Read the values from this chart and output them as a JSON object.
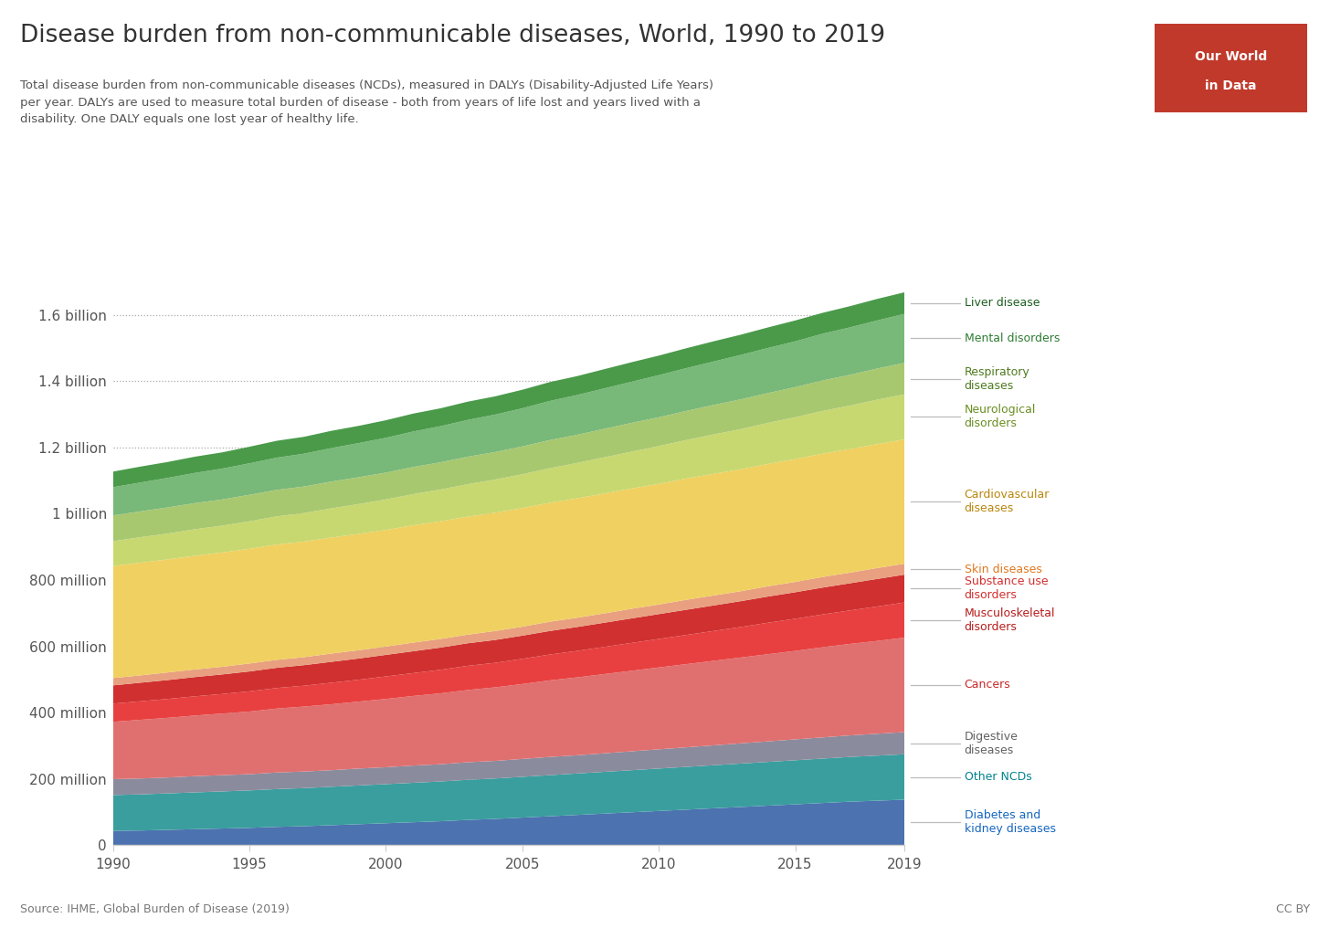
{
  "title": "Disease burden from non-communicable diseases, World, 1990 to 2019",
  "subtitle": "Total disease burden from non-communicable diseases (NCDs), measured in DALYs (Disability-Adjusted Life Years)\nper year. DALYs are used to measure total burden of disease - both from years of life lost and years lived with a\ndisability. One DALY equals one lost year of healthy life.",
  "source": "Source: IHME, Global Burden of Disease (2019)",
  "cc": "CC BY",
  "years": [
    1990,
    1991,
    1992,
    1993,
    1994,
    1995,
    1996,
    1997,
    1998,
    1999,
    2000,
    2001,
    2002,
    2003,
    2004,
    2005,
    2006,
    2007,
    2008,
    2009,
    2010,
    2011,
    2012,
    2013,
    2014,
    2015,
    2016,
    2017,
    2018,
    2019
  ],
  "series": [
    {
      "name": "Diabetes and\nkidney diseases",
      "color": "#4C72B0",
      "label_color": "#1565C0",
      "values_M": [
        43,
        44,
        46,
        48,
        50,
        52,
        55,
        57,
        60,
        63,
        66,
        69,
        72,
        76,
        79,
        83,
        87,
        91,
        95,
        99,
        103,
        107,
        111,
        115,
        119,
        123,
        127,
        131,
        134,
        137
      ]
    },
    {
      "name": "Other NCDs",
      "color": "#3A9E9E",
      "label_color": "#00838F",
      "values_M": [
        108,
        109,
        110,
        111,
        112,
        113,
        114,
        115,
        116,
        117,
        118,
        119,
        120,
        121,
        122,
        123,
        124,
        125,
        126,
        127,
        128,
        129,
        130,
        131,
        132,
        133,
        134,
        135,
        136,
        137
      ]
    },
    {
      "name": "Digestive\ndiseases",
      "color": "#8B8B9E",
      "label_color": "#616161",
      "values_M": [
        48,
        48,
        48,
        49,
        49,
        49,
        50,
        50,
        50,
        51,
        51,
        52,
        52,
        53,
        53,
        54,
        55,
        55,
        56,
        57,
        58,
        59,
        60,
        61,
        62,
        63,
        64,
        65,
        66,
        67
      ]
    },
    {
      "name": "Cancers",
      "color": "#E07070",
      "label_color": "#C62828",
      "values_M": [
        173,
        177,
        180,
        183,
        186,
        189,
        193,
        196,
        199,
        202,
        206,
        210,
        214,
        218,
        222,
        226,
        231,
        235,
        239,
        243,
        247,
        251,
        255,
        259,
        263,
        267,
        272,
        276,
        280,
        285
      ]
    },
    {
      "name": "Musculoskeletal\ndisorders",
      "color": "#E84040",
      "label_color": "#B71C1C",
      "values_M": [
        55,
        56,
        57,
        58,
        59,
        61,
        62,
        63,
        65,
        66,
        68,
        69,
        71,
        73,
        74,
        76,
        78,
        80,
        82,
        84,
        86,
        88,
        90,
        92,
        95,
        97,
        99,
        101,
        104,
        106
      ]
    },
    {
      "name": "Substance use\ndisorders",
      "color": "#D03030",
      "label_color": "#D32F2F",
      "values_M": [
        55,
        56,
        57,
        58,
        59,
        60,
        61,
        62,
        63,
        64,
        65,
        66,
        67,
        68,
        69,
        70,
        71,
        72,
        73,
        74,
        75,
        76,
        77,
        78,
        79,
        80,
        81,
        82,
        83,
        84
      ]
    },
    {
      "name": "Skin diseases",
      "color": "#E8A080",
      "label_color": "#E07820",
      "values_M": [
        22,
        22,
        23,
        23,
        23,
        24,
        24,
        24,
        25,
        25,
        25,
        26,
        26,
        26,
        27,
        27,
        28,
        28,
        28,
        29,
        29,
        30,
        30,
        30,
        31,
        31,
        32,
        32,
        33,
        33
      ]
    },
    {
      "name": "Cardiovascular\ndiseases",
      "color": "#F0D060",
      "label_color": "#B8860B",
      "values_M": [
        338,
        340,
        341,
        343,
        345,
        346,
        348,
        349,
        350,
        351,
        352,
        354,
        355,
        356,
        357,
        358,
        359,
        360,
        362,
        363,
        364,
        366,
        367,
        368,
        369,
        371,
        372,
        373,
        374,
        375
      ]
    },
    {
      "name": "Neurological\ndisorders",
      "color": "#C8D870",
      "label_color": "#6B8E23",
      "values_M": [
        75,
        77,
        78,
        80,
        81,
        83,
        85,
        86,
        88,
        90,
        92,
        94,
        96,
        98,
        100,
        102,
        104,
        107,
        109,
        111,
        114,
        116,
        119,
        121,
        124,
        126,
        129,
        131,
        134,
        136
      ]
    },
    {
      "name": "Respiratory\ndiseases",
      "color": "#A8C870",
      "label_color": "#4E7A1E",
      "values_M": [
        78,
        78,
        79,
        79,
        79,
        80,
        80,
        80,
        81,
        81,
        81,
        82,
        82,
        83,
        83,
        84,
        85,
        85,
        86,
        87,
        87,
        88,
        89,
        90,
        90,
        91,
        92,
        93,
        94,
        95
      ]
    },
    {
      "name": "Mental disorders",
      "color": "#78B878",
      "label_color": "#2E7D32",
      "values_M": [
        85,
        87,
        89,
        91,
        93,
        95,
        97,
        99,
        101,
        103,
        105,
        107,
        109,
        111,
        113,
        115,
        118,
        120,
        122,
        124,
        127,
        129,
        131,
        134,
        136,
        138,
        141,
        143,
        145,
        148
      ]
    },
    {
      "name": "Liver disease",
      "color": "#4A9A4A",
      "label_color": "#1B5E20",
      "values_M": [
        47,
        48,
        48,
        49,
        49,
        50,
        51,
        51,
        52,
        52,
        53,
        54,
        54,
        55,
        55,
        56,
        57,
        57,
        58,
        59,
        59,
        60,
        61,
        61,
        62,
        63,
        63,
        64,
        65,
        65
      ]
    }
  ],
  "yticks": [
    0,
    200000000,
    400000000,
    600000000,
    800000000,
    1000000000,
    1200000000,
    1400000000,
    1600000000
  ],
  "ytick_labels": [
    "0",
    "200 million",
    "400 million",
    "600 million",
    "800 million",
    "1 billion",
    "1.2 billion",
    "1.4 billion",
    "1.6 billion"
  ],
  "ylim_max": 1700000000
}
